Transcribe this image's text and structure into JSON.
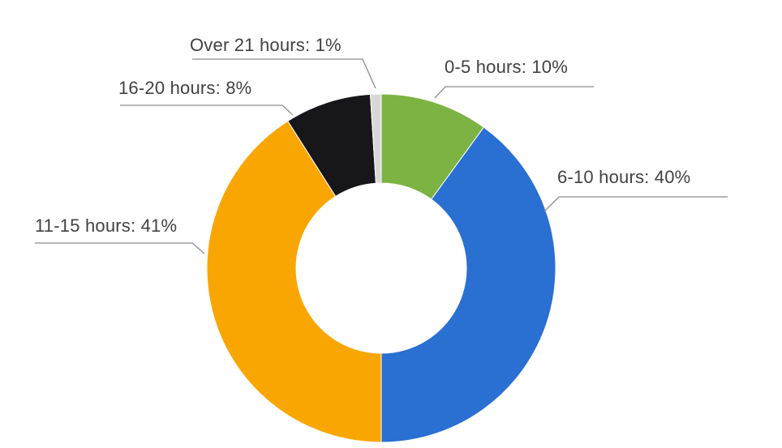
{
  "figure": {
    "background_color": "#ffffff"
  },
  "chart_data": {
    "type": "pie",
    "subtype": "donut",
    "title": "",
    "unit": "%",
    "direction": "clockwise",
    "start_angle_deg": 0,
    "donut_hole_ratio": 0.49,
    "legend_position": "callout-labels",
    "slices": [
      {
        "label": "0-5 hours",
        "value": 10,
        "display": "0-5 hours: 10%",
        "color": "#7cb342"
      },
      {
        "label": "6-10 hours",
        "value": 40,
        "display": "6-10 hours: 40%",
        "color": "#2a6fd2"
      },
      {
        "label": "11-15 hours",
        "value": 41,
        "display": "11-15 hours: 41%",
        "color": "#f9a602"
      },
      {
        "label": "16-20 hours",
        "value": 8,
        "display": "16-20 hours: 8%",
        "color": "#16161b"
      },
      {
        "label": "Over 21 hours",
        "value": 1,
        "display": "Over 21 hours: 1%",
        "color": "#d8d8d8"
      }
    ],
    "labels_style": {
      "text_color": "#414141",
      "leader_line_color": "#8c8c8c"
    }
  }
}
